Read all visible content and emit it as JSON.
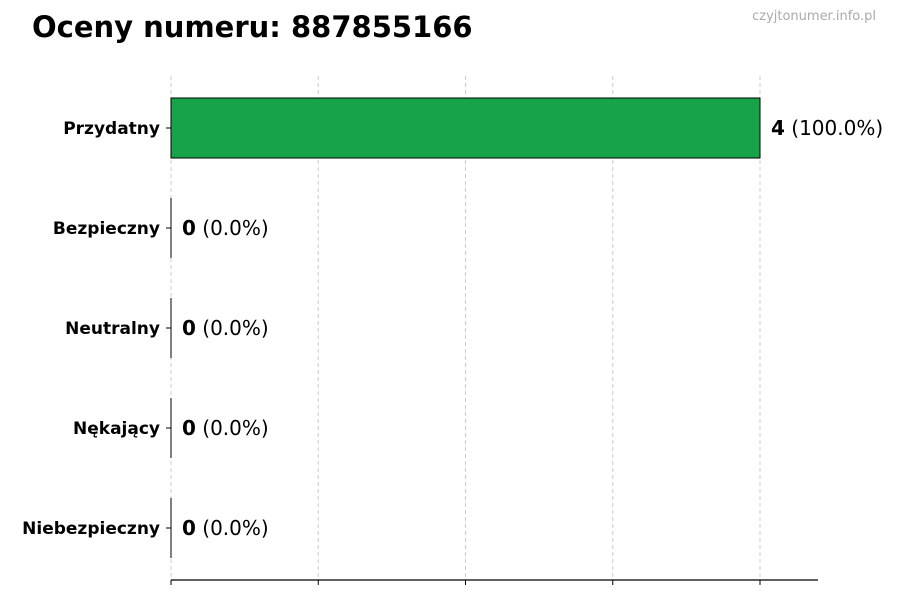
{
  "title": "Oceny numeru: 887855166",
  "watermark": "czyjtonumer.info.pl",
  "chart_data": {
    "type": "bar",
    "orientation": "horizontal",
    "title": "Oceny numeru: 887855166",
    "categories": [
      "Przydatny",
      "Bezpieczny",
      "Neutralny",
      "Nękający",
      "Niebezpieczny"
    ],
    "values": [
      4,
      0,
      0,
      0,
      0
    ],
    "labels": [
      "4",
      "0",
      "0",
      "0",
      "0"
    ],
    "percent_labels": [
      "(100.0%)",
      "(0.0%)",
      "(0.0%)",
      "(0.0%)",
      "(0.0%)"
    ],
    "xlim": [
      0,
      4.4
    ],
    "xticks": [
      0,
      1,
      2,
      3,
      4
    ],
    "xtick_labels_shown": false,
    "grid": "x dashed",
    "xlabel": "",
    "ylabel": "",
    "colors": {
      "bar": "#16a34a",
      "edge": "#000000",
      "grid": "#cccccc"
    }
  }
}
